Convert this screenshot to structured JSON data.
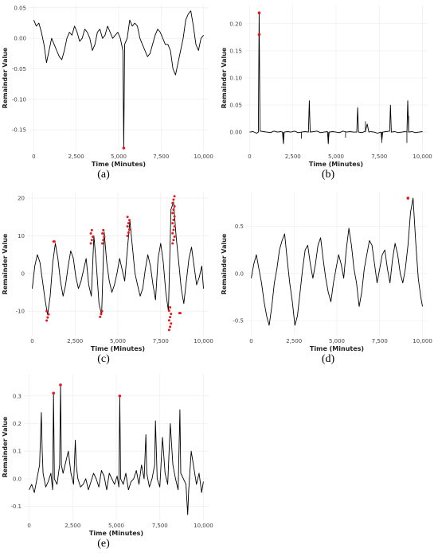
{
  "charts": [
    {
      "id": "a",
      "caption": "(a)",
      "ylabel": "Remainder Value",
      "xlabel": "Time (Minutes)",
      "xticks": [
        "0",
        "2,500",
        "5,000",
        "7,500",
        "10,000"
      ],
      "yticks": [
        "0.05",
        "0.00",
        "-0.05",
        "-0.10",
        "-0.15"
      ]
    },
    {
      "id": "b",
      "caption": "(b)",
      "ylabel": "Remainder Value",
      "xlabel": "Time (Minutes)",
      "xticks": [
        "0",
        "2,500",
        "5,000",
        "7,500",
        "10,000"
      ],
      "yticks": [
        "0.20",
        "0.15",
        "0.10",
        "0.05",
        "0.00"
      ]
    },
    {
      "id": "c",
      "caption": "(c)",
      "ylabel": "Remainder Value",
      "xlabel": "Time (Minutes)",
      "xticks": [
        "0",
        "2,500",
        "5,000",
        "7,500",
        "10,000"
      ],
      "yticks": [
        "20",
        "10",
        "0",
        "-10"
      ]
    },
    {
      "id": "d",
      "caption": "(d)",
      "ylabel": "Remainder Value",
      "xlabel": "Time (Minutes)",
      "xticks": [
        "0",
        "2,500",
        "5,000",
        "7,500",
        "10,000"
      ],
      "yticks": [
        "0.5",
        "0.0",
        "-0.5"
      ]
    },
    {
      "id": "e",
      "caption": "(e)",
      "ylabel": "Remainder Value",
      "xlabel": "Time (Minutes)",
      "xticks": [
        "0",
        "2,500",
        "5,000",
        "7,500",
        "10,000"
      ],
      "yticks": [
        "0.3",
        "0.2",
        "0.1",
        "0.0",
        "-0.1"
      ]
    }
  ],
  "chart_data": [
    {
      "type": "line",
      "panel": "a",
      "xlim": [
        -300,
        10300
      ],
      "ylim": [
        -0.185,
        0.055
      ],
      "grid": true,
      "series": [
        {
          "color": "#000000",
          "x": [
            0,
            150,
            300,
            450,
            600,
            750,
            900,
            1050,
            1200,
            1350,
            1500,
            1650,
            1800,
            1950,
            2100,
            2250,
            2400,
            2550,
            2700,
            2850,
            3000,
            3150,
            3300,
            3450,
            3600,
            3750,
            3900,
            4050,
            4200,
            4350,
            4500,
            4650,
            4800,
            4950,
            5100,
            5250,
            5300,
            5350,
            5500,
            5650,
            5800,
            5950,
            6100,
            6250,
            6400,
            6550,
            6700,
            6850,
            7000,
            7150,
            7300,
            7450,
            7600,
            7750,
            7900,
            8050,
            8200,
            8350,
            8500,
            8650,
            8800,
            8950,
            9100,
            9250,
            9400,
            9550,
            9700,
            9850,
            10000
          ],
          "y": [
            0.03,
            0.02,
            0.025,
            0.01,
            -0.01,
            -0.04,
            -0.02,
            0.0,
            -0.01,
            -0.02,
            -0.03,
            -0.035,
            -0.02,
            0.0,
            0.01,
            0.005,
            0.02,
            0.01,
            -0.005,
            0.0,
            0.015,
            0.01,
            0.0,
            -0.02,
            -0.01,
            0.01,
            0.015,
            0.0,
            0.005,
            0.02,
            0.01,
            0.0,
            0.005,
            0.01,
            0.0,
            -0.02,
            -0.18,
            -0.01,
            0.0,
            0.03,
            0.02,
            0.025,
            0.02,
            0.0,
            -0.01,
            -0.02,
            -0.03,
            -0.025,
            -0.01,
            0.005,
            0.015,
            0.01,
            0.0,
            -0.01,
            -0.01,
            -0.02,
            -0.05,
            -0.06,
            -0.04,
            -0.02,
            0.0,
            0.03,
            0.04,
            0.045,
            0.02,
            -0.01,
            -0.02,
            0.0,
            0.005
          ]
        }
      ],
      "anomalies": [
        {
          "x": 5300,
          "y": -0.18
        }
      ]
    },
    {
      "type": "line",
      "panel": "b",
      "xlim": [
        -300,
        10300
      ],
      "ylim": [
        -0.035,
        0.235
      ],
      "grid": true,
      "series": [
        {
          "color": "#000000",
          "x": [
            0,
            200,
            400,
            500,
            550,
            600,
            800,
            1000,
            1200,
            1400,
            1600,
            1800,
            1900,
            1950,
            2000,
            2200,
            2400,
            2600,
            2800,
            3000,
            3200,
            3400,
            3450,
            3500,
            3700,
            3900,
            4100,
            4300,
            4500,
            4550,
            4600,
            4800,
            5000,
            5200,
            5400,
            5600,
            5800,
            6000,
            6200,
            6250,
            6300,
            6500,
            6700,
            6800,
            6900,
            7000,
            7200,
            7400,
            7600,
            7650,
            7700,
            7900,
            8100,
            8150,
            8200,
            8400,
            8600,
            8800,
            9000,
            9100,
            9150,
            9200,
            9400,
            9600,
            9800,
            10000
          ],
          "y": [
            0.0,
            0.001,
            -0.002,
            0.0,
            0.22,
            0.002,
            0.001,
            0.0,
            -0.001,
            0.002,
            0.0,
            0.001,
            0.0,
            -0.02,
            0.0,
            0.001,
            0.0,
            0.002,
            -0.001,
            0.0,
            0.001,
            0.0,
            0.058,
            0.0,
            0.001,
            0.002,
            -0.001,
            0.0,
            0.001,
            -0.02,
            0.0,
            0.001,
            0.0,
            -0.001,
            0.002,
            0.0,
            0.001,
            0.0,
            0.0,
            0.045,
            0.0,
            -0.001,
            0.002,
            0.015,
            0.0,
            0.001,
            0.0,
            -0.002,
            0.0,
            -0.015,
            0.0,
            0.001,
            0.002,
            0.05,
            0.0,
            0.001,
            -0.001,
            0.0,
            0.001,
            0.0,
            0.058,
            0.0,
            0.001,
            -0.001,
            0.0,
            0.001
          ]
        }
      ],
      "spikes": [
        {
          "x": 1950,
          "y": -0.022
        },
        {
          "x": 3000,
          "y": -0.012
        },
        {
          "x": 4550,
          "y": -0.022
        },
        {
          "x": 5550,
          "y": -0.01
        },
        {
          "x": 7650,
          "y": -0.02
        },
        {
          "x": 9100,
          "y": -0.02
        },
        {
          "x": 9200,
          "y": 0.03
        },
        {
          "x": 6700,
          "y": 0.02
        }
      ],
      "anomalies": [
        {
          "x": 550,
          "y": 0.22
        },
        {
          "x": 550,
          "y": 0.18
        }
      ]
    },
    {
      "type": "line",
      "panel": "c",
      "xlim": [
        -300,
        10300
      ],
      "ylim": [
        -16.5,
        21.5
      ],
      "grid": true,
      "series": [
        {
          "color": "#000000",
          "x": [
            0,
            150,
            300,
            450,
            600,
            750,
            900,
            1050,
            1200,
            1350,
            1500,
            1650,
            1800,
            1950,
            2100,
            2250,
            2400,
            2550,
            2700,
            2850,
            3000,
            3150,
            3300,
            3450,
            3600,
            3750,
            3900,
            4050,
            4200,
            4350,
            4500,
            4650,
            4800,
            4950,
            5100,
            5250,
            5400,
            5550,
            5700,
            5850,
            6000,
            6150,
            6300,
            6450,
            6600,
            6750,
            6900,
            7050,
            7200,
            7350,
            7500,
            7650,
            7800,
            7950,
            8100,
            8250,
            8400,
            8550,
            8700,
            8850,
            9000,
            9150,
            9300,
            9450,
            9600,
            9750,
            9900,
            10000
          ],
          "y": [
            -4,
            2,
            5,
            3,
            -2,
            -7,
            -11,
            -6,
            3,
            8,
            4,
            -2,
            -6,
            -3,
            2,
            6,
            4,
            -1,
            -4,
            -2,
            1,
            4,
            -3,
            -6,
            10,
            2,
            -8,
            -11,
            11,
            3,
            -2,
            -5,
            -3,
            0,
            4,
            1,
            -2,
            6,
            14,
            7,
            0,
            -3,
            -6,
            -4,
            1,
            5,
            2,
            -3,
            -7,
            4,
            8,
            3,
            -5,
            -10,
            17,
            19,
            10,
            3,
            -4,
            -8,
            -2,
            4,
            7,
            2,
            -3,
            -1,
            2,
            -4
          ]
        }
      ],
      "anomaly_clusters": [
        {
          "x": 900,
          "ymin": -12.5,
          "ymax": -10
        },
        {
          "x": 1300,
          "ymin": 8.5,
          "ymax": 8.5
        },
        {
          "x": 3480,
          "ymin": 8,
          "ymax": 11.5
        },
        {
          "x": 4020,
          "ymin": -11.5,
          "ymax": -10
        },
        {
          "x": 4150,
          "ymin": 8,
          "ymax": 11.5
        },
        {
          "x": 5620,
          "ymin": 10,
          "ymax": 15
        },
        {
          "x": 8050,
          "ymin": -15,
          "ymax": -9
        },
        {
          "x": 8250,
          "ymin": 8,
          "ymax": 20.5
        },
        {
          "x": 8650,
          "ymin": -10.5,
          "ymax": -10.5
        }
      ]
    },
    {
      "type": "line",
      "panel": "d",
      "xlim": [
        -300,
        10300
      ],
      "ylim": [
        -0.66,
        0.86
      ],
      "grid": true,
      "series": [
        {
          "color": "#000000",
          "x": [
            0,
            150,
            300,
            450,
            600,
            750,
            900,
            1050,
            1200,
            1350,
            1500,
            1650,
            1800,
            1950,
            2100,
            2250,
            2400,
            2550,
            2700,
            2850,
            3000,
            3150,
            3300,
            3450,
            3600,
            3750,
            3900,
            4050,
            4200,
            4350,
            4500,
            4650,
            4800,
            4950,
            5100,
            5250,
            5400,
            5550,
            5700,
            5850,
            6000,
            6150,
            6300,
            6450,
            6600,
            6750,
            6900,
            7050,
            7200,
            7350,
            7500,
            7650,
            7800,
            7950,
            8100,
            8250,
            8400,
            8550,
            8700,
            8850,
            9000,
            9150,
            9300,
            9450,
            9600,
            9750,
            9900,
            10000
          ],
          "y": [
            -0.05,
            0.1,
            0.2,
            0.05,
            -0.1,
            -0.3,
            -0.45,
            -0.55,
            -0.35,
            -0.1,
            0.05,
            0.25,
            0.35,
            0.42,
            0.15,
            -0.1,
            -0.3,
            -0.55,
            -0.45,
            -0.2,
            0.05,
            0.25,
            0.3,
            0.1,
            -0.05,
            0.1,
            0.3,
            0.38,
            0.15,
            -0.05,
            -0.2,
            -0.3,
            -0.1,
            0.05,
            0.2,
            0.1,
            -0.05,
            0.25,
            0.48,
            0.3,
            0.05,
            -0.1,
            -0.35,
            -0.2,
            0.05,
            0.2,
            0.35,
            0.3,
            0.1,
            -0.1,
            0.05,
            0.2,
            0.25,
            0.05,
            -0.1,
            0.15,
            0.32,
            0.2,
            0.0,
            -0.1,
            0.05,
            0.3,
            0.65,
            0.8,
            0.35,
            -0.05,
            -0.25,
            -0.35
          ]
        }
      ],
      "anomalies": [
        {
          "x": 9150,
          "y": 0.8
        }
      ]
    },
    {
      "type": "line",
      "panel": "e",
      "xlim": [
        -300,
        10300
      ],
      "ylim": [
        -0.15,
        0.38
      ],
      "grid": true,
      "series": [
        {
          "color": "#000000",
          "x": [
            0,
            150,
            300,
            450,
            600,
            700,
            750,
            800,
            950,
            1100,
            1250,
            1350,
            1400,
            1450,
            1600,
            1750,
            1800,
            1850,
            1950,
            2100,
            2250,
            2400,
            2550,
            2650,
            2700,
            2800,
            2950,
            3100,
            3250,
            3400,
            3550,
            3700,
            3850,
            4000,
            4150,
            4300,
            4450,
            4600,
            4750,
            4900,
            5050,
            5150,
            5200,
            5250,
            5400,
            5550,
            5700,
            5850,
            6000,
            6150,
            6300,
            6450,
            6600,
            6700,
            6750,
            6900,
            7050,
            7200,
            7250,
            7350,
            7500,
            7650,
            7800,
            7950,
            8100,
            8250,
            8400,
            8550,
            8650,
            8700,
            8850,
            9000,
            9100,
            9150,
            9300,
            9450,
            9600,
            9750,
            9900,
            10000
          ],
          "y": [
            -0.04,
            -0.02,
            -0.05,
            0.0,
            0.05,
            0.24,
            0.1,
            0.02,
            -0.03,
            -0.01,
            0.02,
            -0.04,
            0.31,
            0.0,
            -0.02,
            0.05,
            0.34,
            0.05,
            0.02,
            0.06,
            0.1,
            0.02,
            -0.02,
            0.14,
            0.05,
            0.0,
            -0.03,
            -0.02,
            0.0,
            -0.04,
            -0.01,
            0.02,
            0.0,
            -0.03,
            0.03,
            0.01,
            -0.04,
            0.02,
            0.0,
            -0.02,
            0.01,
            -0.03,
            0.3,
            0.0,
            -0.02,
            0.02,
            -0.04,
            -0.01,
            0.0,
            0.03,
            -0.02,
            0.05,
            0.0,
            0.16,
            0.02,
            -0.03,
            0.0,
            0.05,
            0.21,
            0.0,
            -0.03,
            0.15,
            0.02,
            -0.02,
            0.2,
            0.05,
            0.0,
            -0.04,
            0.25,
            0.02,
            0.0,
            -0.02,
            -0.13,
            -0.05,
            0.1,
            0.04,
            -0.02,
            0.02,
            -0.05,
            -0.01
          ]
        }
      ],
      "anomalies": [
        {
          "x": 1400,
          "y": 0.31
        },
        {
          "x": 1800,
          "y": 0.34
        },
        {
          "x": 5200,
          "y": 0.3
        }
      ]
    }
  ]
}
